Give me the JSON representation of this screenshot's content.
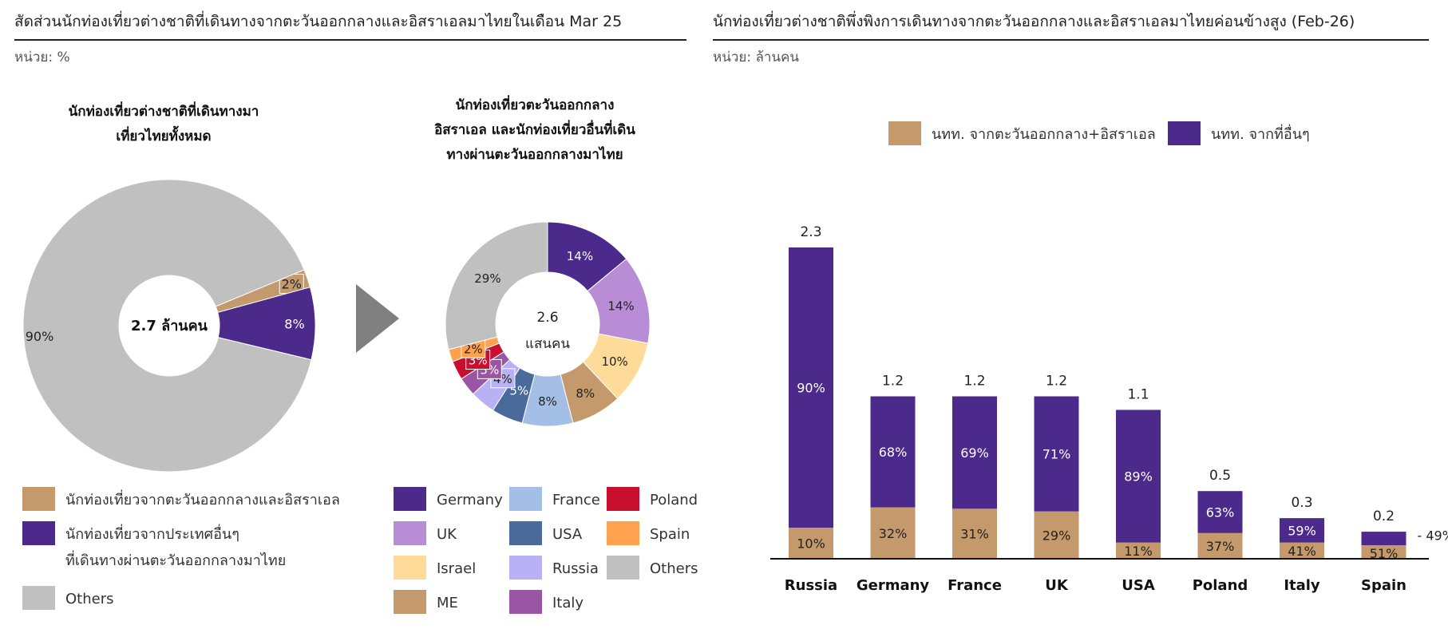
{
  "left_panel": {
    "title": "สัดส่วนนักท่องเที่ยวต่างชาติที่เดินทางจากตะวันออกกลางและอิสราเอลมาไทยในเดือน Mar 25",
    "unit": "หน่วย: %"
  },
  "right_panel": {
    "title": "นักท่องเที่ยวต่างชาติพึ่งพิงการเดินทางจากตะวันออกกลางและอิสราเอลมาไทยค่อนข้างสูง (Feb-26)",
    "unit": "หน่วย: ล้านคน"
  },
  "colors": {
    "me": "#C49A6C",
    "other": "#4B2A8C",
    "others_gray": "#C0C0C0",
    "germany": "#4B2A8C",
    "uk": "#B98CD6",
    "israel": "#FFDB99",
    "me_tan": "#C49A6C",
    "france": "#A4BFE6",
    "usa": "#4A6A9C",
    "russia": "#B9B1F5",
    "italy": "#9B55A5",
    "poland": "#C8102E",
    "spain": "#FFA14F",
    "arrow": "#808080"
  },
  "chart_data": [
    {
      "type": "pie",
      "title_lines": [
        "นักท่องเที่ยวต่างชาติที่เดินทางมา",
        "เที่ยวไทยทั้งหมด"
      ],
      "center_label": "2.7 ล้านคน",
      "slices": [
        {
          "name": "นักท่องเที่ยวจากตะวันออกกลางและอิสราเอล",
          "value": 2,
          "label": "2%",
          "color": "#C49A6C"
        },
        {
          "name": "นักท่องเที่ยวจากประเทศอื่นๆ ที่เดินทางผ่านตะวันออกกลางมาไทย",
          "value": 8,
          "label": "8%",
          "color": "#4B2A8C"
        },
        {
          "name": "Others",
          "value": 90,
          "label": "90%",
          "color": "#C0C0C0"
        }
      ],
      "legend": [
        {
          "lines": [
            "นักท่องเที่ยวจากตะวันออกกลางและอิสราเอล"
          ],
          "color": "#C49A6C"
        },
        {
          "lines": [
            "นักท่องเที่ยวจากประเทศอื่นๆ",
            "ที่เดินทางผ่านตะวันออกกลางมาไทย"
          ],
          "color": "#4B2A8C"
        },
        {
          "lines": [
            "Others"
          ],
          "color": "#C0C0C0"
        }
      ]
    },
    {
      "type": "pie",
      "title_lines": [
        "นักท่องเที่ยวตะวันออกกลาง",
        "อิสราเอล และนักท่องเที่ยวอื่นที่เดิน",
        "ทางผ่านตะวันออกกลางมาไทย"
      ],
      "center_label_lines": [
        "2.6",
        "แสนคน"
      ],
      "slices": [
        {
          "name": "Germany",
          "value": 14,
          "label": "14%",
          "color": "#4B2A8C"
        },
        {
          "name": "UK",
          "value": 14,
          "label": "14%",
          "color": "#B98CD6"
        },
        {
          "name": "Israel",
          "value": 10,
          "label": "10%",
          "color": "#FFDB99"
        },
        {
          "name": "ME",
          "value": 8,
          "label": "8%",
          "color": "#C49A6C"
        },
        {
          "name": "France",
          "value": 8,
          "label": "8%",
          "color": "#A4BFE6"
        },
        {
          "name": "USA",
          "value": 5,
          "label": "5%",
          "color": "#4A6A9C"
        },
        {
          "name": "Russia",
          "value": 4,
          "label": "4%",
          "color": "#B9B1F5"
        },
        {
          "name": "Italy",
          "value": 3,
          "label": "3%",
          "color": "#9B55A5"
        },
        {
          "name": "Poland",
          "value": 3,
          "label": "3%",
          "color": "#C8102E"
        },
        {
          "name": "Spain",
          "value": 2,
          "label": "2%",
          "color": "#FFA14F"
        },
        {
          "name": "Others",
          "value": 29,
          "label": "29%",
          "color": "#C0C0C0"
        }
      ],
      "legend": [
        {
          "name": "Germany",
          "color": "#4B2A8C"
        },
        {
          "name": "UK",
          "color": "#B98CD6"
        },
        {
          "name": "Israel",
          "color": "#FFDB99"
        },
        {
          "name": "ME",
          "color": "#C49A6C"
        },
        {
          "name": "France",
          "color": "#A4BFE6"
        },
        {
          "name": "USA",
          "color": "#4A6A9C"
        },
        {
          "name": "Russia",
          "color": "#B9B1F5"
        },
        {
          "name": "Italy",
          "color": "#9B55A5"
        },
        {
          "name": "Poland",
          "color": "#C8102E"
        },
        {
          "name": "Spain",
          "color": "#FFA14F"
        },
        {
          "name": "Others",
          "color": "#C0C0C0"
        }
      ]
    },
    {
      "type": "bar",
      "stacked": true,
      "categories": [
        "Russia",
        "Germany",
        "France",
        "UK",
        "USA",
        "Poland",
        "Italy",
        "Spain"
      ],
      "totals": [
        2.3,
        1.2,
        1.2,
        1.2,
        1.1,
        0.5,
        0.3,
        0.2
      ],
      "total_labels": [
        "2.3",
        "1.2",
        "1.2",
        "1.2",
        "1.1",
        "0.5",
        "0.3",
        "0.2"
      ],
      "ylim": [
        0,
        2.3
      ],
      "series": [
        {
          "name": "นทท. จากตะวันออกกลาง+อิสราเอล",
          "color": "#C49A6C",
          "values": [
            0.23,
            0.38,
            0.37,
            0.35,
            0.12,
            0.19,
            0.12,
            0.1
          ],
          "labels": [
            "10%",
            "32%",
            "31%",
            "29%",
            "11%",
            "37%",
            "41%",
            "51%"
          ]
        },
        {
          "name": "นทท. จากที่อื่นๆ",
          "color": "#4B2A8C",
          "values": [
            2.07,
            0.82,
            0.83,
            0.85,
            0.98,
            0.31,
            0.18,
            0.1
          ],
          "labels": [
            "90%",
            "68%",
            "69%",
            "71%",
            "89%",
            "63%",
            "59%",
            "49%"
          ]
        }
      ],
      "legend_position": "top-center"
    }
  ]
}
